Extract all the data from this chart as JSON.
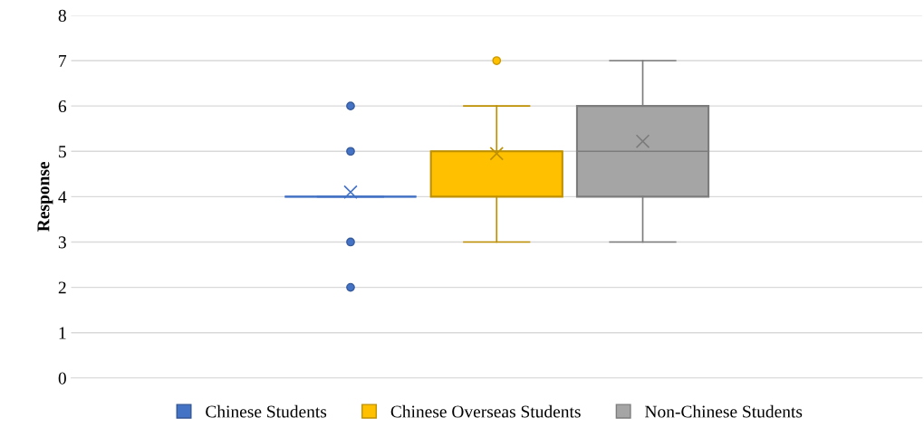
{
  "chart_data": {
    "type": "box",
    "ylabel": "Response",
    "categories": [
      null
    ],
    "series": [
      {
        "name": "Chinese Students",
        "color": "#4472c4",
        "boxes": [
          {
            "low": 4,
            "q1": 4,
            "median": 4,
            "q3": 4,
            "high": 4,
            "mean": 4.1,
            "outliers": [
              2,
              3,
              5,
              6
            ]
          }
        ]
      },
      {
        "name": "Chinese Overseas Students",
        "color": "#ffc000",
        "boxes": [
          {
            "low": 3,
            "q1": 4,
            "median": 5,
            "q3": 5,
            "high": 6,
            "mean": 4.95,
            "outliers": [
              7
            ]
          }
        ]
      },
      {
        "name": "Non-Chinese Students",
        "color": "#a5a5a5",
        "boxes": [
          {
            "low": 3,
            "q1": 4,
            "median": 5,
            "q3": 6,
            "high": 7,
            "mean": 5.22
          }
        ]
      }
    ],
    "ylim": [
      0,
      8
    ],
    "yticks": [
      0,
      1,
      2,
      3,
      4,
      5,
      6,
      7,
      8
    ],
    "grid": "y",
    "legend": "bottom"
  }
}
